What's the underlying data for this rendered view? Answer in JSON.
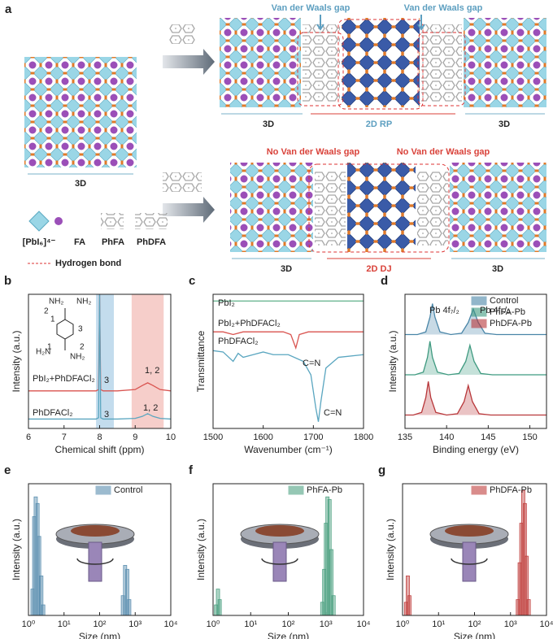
{
  "diagram": {
    "panel": "a",
    "top_labels": [
      "Van der Waals gap",
      "Van der Waals gap"
    ],
    "top_sections": [
      "3D",
      "2D RP",
      "3D"
    ],
    "left_label": "3D",
    "bottom_labels": [
      "No Van der Waals gap",
      "No Van der Waals gap"
    ],
    "bottom_sections": [
      "3D",
      "2D DJ",
      "3D"
    ],
    "legend": [
      "[PbI₆]⁴⁻",
      "FA",
      "PhFA",
      "PhDFA"
    ],
    "hbond": "Hydrogen bond"
  },
  "chart_data": [
    {
      "type": "line",
      "panel": "b",
      "xlabel": "Chemical shift (ppm)",
      "ylabel": "Intensity (a.u.)",
      "xlim": [
        6,
        10
      ],
      "xticks": [
        6,
        7,
        8,
        9,
        10
      ],
      "ylim": [
        0,
        10
      ],
      "shaded_regions": [
        {
          "xrange": [
            7.9,
            8.4
          ],
          "color": "#a9cde6"
        },
        {
          "xrange": [
            8.9,
            9.8
          ],
          "color": "#f2b9b3"
        }
      ],
      "structure_labels": [
        "NH₂",
        "NH₂",
        "2",
        "1",
        "3",
        "1",
        "2",
        "H₂N",
        "NH₂"
      ],
      "annotations": [
        "3",
        "1, 2",
        "3",
        "1, 2"
      ],
      "series": [
        {
          "name": "PbI₂+PhDFACl₂",
          "color": "#d9534f",
          "x": [
            6,
            7,
            7.9,
            7.97,
            8.0,
            8.03,
            8.1,
            8.5,
            9.0,
            9.2,
            9.35,
            9.5,
            9.7,
            10
          ],
          "values": [
            2.8,
            2.8,
            2.8,
            2.9,
            10,
            2.9,
            2.8,
            2.8,
            2.9,
            3.2,
            3.4,
            3.2,
            2.9,
            2.8
          ]
        },
        {
          "name": "PhDFACl₂",
          "color": "#5aa6c0",
          "x": [
            6,
            7,
            7.9,
            7.97,
            8.0,
            8.03,
            8.1,
            8.5,
            9.0,
            9.2,
            9.35,
            9.5,
            9.7,
            10
          ],
          "values": [
            0.7,
            0.7,
            0.7,
            0.8,
            10,
            0.8,
            0.7,
            0.7,
            0.75,
            0.9,
            1.1,
            0.9,
            0.75,
            0.7
          ]
        }
      ]
    },
    {
      "type": "line",
      "panel": "c",
      "xlabel": "Wavenumber (cm⁻¹)",
      "ylabel": "Transmittance",
      "xlim": [
        1500,
        1800
      ],
      "xticks": [
        1500,
        1600,
        1700,
        1800
      ],
      "ylim": [
        0,
        1
      ],
      "annotations": [
        "C=N",
        "C=N"
      ],
      "series": [
        {
          "name": "PbI₂",
          "color": "#5fb08a",
          "x": [
            1500,
            1800
          ],
          "values": [
            0.95,
            0.95
          ]
        },
        {
          "name": "PbI₂+PhDFACl₂",
          "color": "#d9534f",
          "x": [
            1500,
            1520,
            1540,
            1560,
            1600,
            1640,
            1655,
            1665,
            1672,
            1690,
            1750,
            1800
          ],
          "values": [
            0.72,
            0.72,
            0.7,
            0.72,
            0.72,
            0.72,
            0.7,
            0.6,
            0.7,
            0.72,
            0.72,
            0.72
          ]
        },
        {
          "name": "PhDFACl₂",
          "color": "#5aa6c0",
          "x": [
            1500,
            1520,
            1540,
            1550,
            1560,
            1580,
            1600,
            1620,
            1650,
            1680,
            1695,
            1705,
            1710,
            1715,
            1725,
            1750,
            1800
          ],
          "values": [
            0.58,
            0.57,
            0.5,
            0.56,
            0.53,
            0.55,
            0.57,
            0.55,
            0.55,
            0.5,
            0.4,
            0.15,
            0.05,
            0.2,
            0.45,
            0.53,
            0.55
          ]
        }
      ]
    },
    {
      "type": "line",
      "panel": "d",
      "xlabel": "Binding energy (eV)",
      "ylabel": "Intensity (a.u.)",
      "xlim": [
        135,
        152
      ],
      "xticks": [
        135,
        140,
        145,
        150
      ],
      "ylim": [
        0,
        10
      ],
      "legend": "upper right",
      "annotations": [
        "Pb 4f₇/₂",
        "Pb 4f₅/₂"
      ],
      "series": [
        {
          "name": "Control",
          "color": "#4a86a8",
          "x": [
            135,
            136.5,
            137.5,
            138,
            138.3,
            138.6,
            139.2,
            140.5,
            141.8,
            142.6,
            143.2,
            143.8,
            144.6,
            146,
            152
          ],
          "values": [
            7,
            7,
            7.2,
            8.3,
            9.3,
            8.3,
            7.2,
            7,
            7.1,
            7.9,
            8.9,
            7.9,
            7.1,
            7,
            7
          ]
        },
        {
          "name": "PhFA-Pb",
          "color": "#3f9a80",
          "x": [
            135,
            136.2,
            137.2,
            137.7,
            138,
            138.3,
            138.9,
            140.2,
            141.5,
            142.3,
            142.8,
            143.3,
            144.1,
            145.5,
            152
          ],
          "values": [
            4,
            4,
            4.2,
            5.3,
            6.5,
            5.3,
            4.2,
            4,
            4.1,
            5,
            6.2,
            5,
            4.1,
            4,
            4
          ]
        },
        {
          "name": "PhDFA-Pb",
          "color": "#b8373a",
          "x": [
            135,
            136,
            137,
            137.5,
            137.8,
            138.1,
            138.7,
            140,
            141.3,
            142.1,
            142.6,
            143.1,
            143.9,
            145.3,
            152
          ],
          "values": [
            1,
            1,
            1.2,
            2.3,
            3.5,
            2.3,
            1.2,
            1,
            1.1,
            2,
            3.2,
            2,
            1.1,
            1,
            1
          ]
        }
      ]
    },
    {
      "type": "bar",
      "panel": "e",
      "xlabel": "Size (nm)",
      "ylabel": "Intensity (a.u.)",
      "xlog": true,
      "xlim": [
        1,
        10000
      ],
      "xticks": [
        {
          "value": 1,
          "label": "10⁰"
        },
        {
          "value": 10,
          "label": "10¹"
        },
        {
          "value": 100,
          "label": "10²"
        },
        {
          "value": 1000,
          "label": "10³"
        },
        {
          "value": 10000,
          "label": "10⁴"
        }
      ],
      "ylim": [
        0,
        100
      ],
      "legend": "upper right",
      "series": [
        {
          "name": "Control",
          "color": "#5b8fb0",
          "x": [
            1.3,
            1.45,
            1.6,
            1.8,
            2.0,
            2.3,
            2.6,
            450,
            520,
            600,
            680
          ],
          "values": [
            20,
            75,
            90,
            85,
            60,
            30,
            8,
            15,
            38,
            35,
            12
          ]
        }
      ]
    },
    {
      "type": "bar",
      "panel": "f",
      "xlabel": "Size (nm)",
      "ylabel": "Intensity (a.u.)",
      "xlog": true,
      "xlim": [
        1,
        10000
      ],
      "xticks": [
        {
          "value": 1,
          "label": "10⁰"
        },
        {
          "value": 10,
          "label": "10¹"
        },
        {
          "value": 100,
          "label": "10²"
        },
        {
          "value": 1000,
          "label": "10³"
        },
        {
          "value": 10000,
          "label": "10⁴"
        }
      ],
      "ylim": [
        0,
        100
      ],
      "legend": "upper right",
      "series": [
        {
          "name": "PhFA-Pb",
          "color": "#4fa283",
          "x": [
            1.2,
            1.35,
            1.5,
            800,
            900,
            1000,
            1100,
            1250,
            1400,
            1600
          ],
          "values": [
            8,
            20,
            12,
            10,
            35,
            70,
            90,
            88,
            50,
            15
          ]
        }
      ]
    },
    {
      "type": "bar",
      "panel": "g",
      "xlabel": "Size (nm)",
      "ylabel": "Intensity (a.u.)",
      "xlog": true,
      "xlim": [
        1,
        10000
      ],
      "xticks": [
        {
          "value": 1,
          "label": "10⁰"
        },
        {
          "value": 10,
          "label": "10¹"
        },
        {
          "value": 100,
          "label": "10²"
        },
        {
          "value": 1000,
          "label": "10³"
        },
        {
          "value": 10000,
          "label": "10⁴"
        }
      ],
      "ylim": [
        0,
        100
      ],
      "legend": "upper right",
      "series": [
        {
          "name": "PhDFA-Pb",
          "color": "#c0403f",
          "x": [
            1.25,
            1.4,
            1.55,
            1600,
            1800,
            2000,
            2250,
            2500,
            2800,
            3200
          ],
          "values": [
            10,
            30,
            15,
            12,
            40,
            70,
            95,
            85,
            45,
            12
          ]
        }
      ]
    }
  ]
}
